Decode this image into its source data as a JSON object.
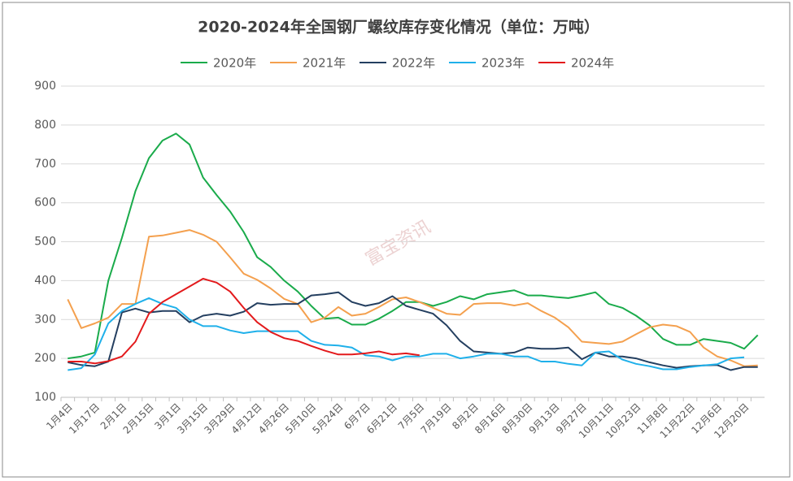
{
  "chart_data": {
    "type": "line",
    "title": "2020-2024年全国钢厂螺纹库存变化情况（单位：万吨）",
    "watermark": "富宝资讯",
    "categories": [
      "1月4日",
      null,
      "1月17日",
      null,
      "2月1日",
      null,
      "2月15日",
      null,
      "3月1日",
      null,
      "3月15日",
      null,
      "3月29日",
      null,
      "4月12日",
      null,
      "4月26日",
      null,
      "5月10日",
      null,
      "5月24日",
      null,
      "6月7日",
      null,
      "6月21日",
      null,
      "7月5日",
      null,
      "7月19日",
      null,
      "8月2日",
      null,
      "8月16日",
      null,
      "8月30日",
      null,
      "9月13日",
      null,
      "9月27日",
      null,
      "10月11日",
      null,
      "10月23日",
      null,
      "11月8日",
      null,
      "11月22日",
      null,
      "12月6日",
      null,
      "12月20日",
      null
    ],
    "series": [
      {
        "name": "2020年",
        "color": "#1aab4b",
        "values": [
          200,
          205,
          215,
          400,
          510,
          630,
          715,
          760,
          778,
          750,
          665,
          620,
          578,
          525,
          460,
          435,
          400,
          372,
          335,
          302,
          305,
          287,
          287,
          302,
          322,
          345,
          345,
          335,
          345,
          360,
          352,
          365,
          370,
          375,
          362,
          362,
          358,
          355,
          362,
          370,
          340,
          330,
          310,
          285,
          250,
          235,
          235,
          250,
          245,
          240,
          225,
          260
        ]
      },
      {
        "name": "2021年",
        "color": "#f4a04e",
        "values": [
          352,
          278,
          290,
          305,
          340,
          340,
          513,
          516,
          523,
          530,
          518,
          500,
          460,
          418,
          402,
          380,
          353,
          340,
          293,
          305,
          332,
          310,
          315,
          332,
          352,
          357,
          345,
          330,
          315,
          312,
          340,
          342,
          342,
          336,
          342,
          322,
          305,
          280,
          243,
          240,
          237,
          243,
          262,
          280,
          287,
          283,
          268,
          228,
          205,
          195,
          180,
          182
        ]
      },
      {
        "name": "2022年",
        "color": "#243f60",
        "values": [
          190,
          183,
          180,
          192,
          318,
          328,
          318,
          322,
          322,
          293,
          310,
          315,
          310,
          320,
          342,
          338,
          340,
          340,
          362,
          365,
          370,
          345,
          335,
          342,
          360,
          335,
          325,
          315,
          285,
          245,
          218,
          215,
          212,
          215,
          228,
          225,
          225,
          228,
          198,
          215,
          205,
          205,
          200,
          190,
          182,
          176,
          180,
          182,
          183,
          170,
          178,
          178
        ]
      },
      {
        "name": "2023年",
        "color": "#1fb0ea",
        "values": [
          170,
          175,
          210,
          290,
          322,
          340,
          355,
          340,
          330,
          300,
          283,
          283,
          272,
          265,
          270,
          270,
          270,
          270,
          245,
          235,
          233,
          228,
          208,
          205,
          195,
          205,
          205,
          212,
          212,
          200,
          205,
          212,
          212,
          205,
          205,
          192,
          192,
          186,
          182,
          215,
          218,
          197,
          186,
          180,
          172,
          172,
          178,
          182,
          185,
          200,
          203,
          null
        ]
      },
      {
        "name": "2024年",
        "color": "#e31a1c",
        "values": [
          192,
          192,
          187,
          193,
          205,
          243,
          315,
          345,
          365,
          385,
          405,
          395,
          372,
          330,
          293,
          268,
          252,
          245,
          232,
          220,
          210,
          210,
          213,
          218,
          210,
          213,
          208,
          null,
          null,
          null,
          null,
          null,
          null,
          null,
          null,
          null,
          null,
          null,
          null,
          null,
          null,
          null,
          null,
          null,
          null,
          null,
          null,
          null,
          null,
          null,
          null,
          null
        ]
      }
    ],
    "ylim": [
      100,
      900
    ],
    "yticks": [
      100,
      200,
      300,
      400,
      500,
      600,
      700,
      800,
      900
    ],
    "grid": true
  }
}
